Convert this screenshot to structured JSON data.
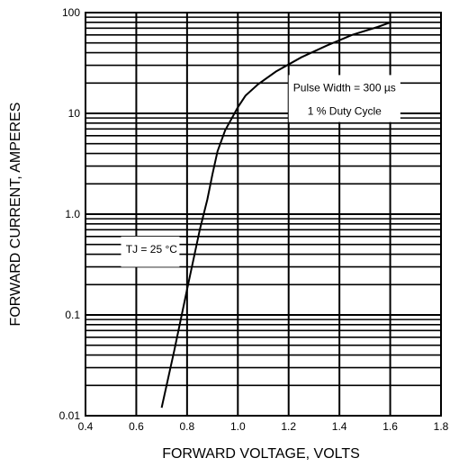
{
  "chart_data": {
    "type": "line",
    "title": "",
    "xlabel": "FORWARD VOLTAGE, VOLTS",
    "ylabel": "FORWARD CURRENT, AMPERES",
    "xlim": [
      0.4,
      1.8
    ],
    "ylim": [
      0.01,
      100
    ],
    "yscale": "log",
    "grid": true,
    "x_ticks": [
      "0.4",
      "0.6",
      "0.8",
      "1.0",
      "1.2",
      "1.4",
      "1.6",
      "1.8"
    ],
    "y_ticks": [
      "0.01",
      "0.1",
      "1.0",
      "10",
      "100"
    ],
    "series": [
      {
        "x": [
          0.7,
          0.75,
          0.8,
          0.85,
          0.88,
          0.9,
          0.92,
          0.95,
          1.0,
          1.03,
          1.08,
          1.15,
          1.25,
          1.35,
          1.45,
          1.55,
          1.6
        ],
        "y": [
          0.012,
          0.045,
          0.18,
          0.7,
          1.4,
          2.5,
          4.2,
          6.8,
          11.5,
          15,
          19.5,
          26,
          36,
          47,
          60,
          72,
          80
        ]
      }
    ],
    "annotations": [
      {
        "text": "Pulse Width = 300 µs",
        "x": 1.42,
        "y": 18
      },
      {
        "text": "1 % Duty Cycle",
        "x": 1.42,
        "y": 10.5
      },
      {
        "text": "TJ  = 25 °C",
        "x": 0.66,
        "y": 0.45
      }
    ]
  }
}
